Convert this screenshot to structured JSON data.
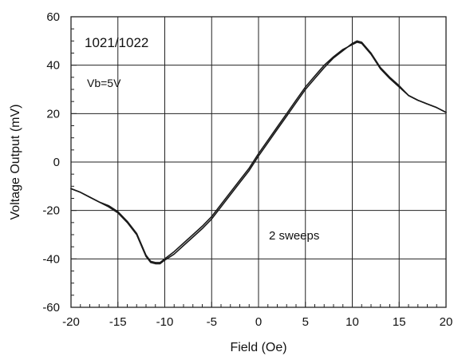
{
  "chart_data": {
    "type": "line",
    "title": "",
    "xlabel": "Field (Oe)",
    "ylabel": "Voltage Output (mV)",
    "xlim": [
      -20,
      20
    ],
    "ylim": [
      -60,
      60
    ],
    "xticks": [
      -20,
      -15,
      -10,
      -5,
      0,
      5,
      10,
      15,
      20
    ],
    "yticks": [
      -60,
      -40,
      -20,
      0,
      20,
      40,
      60
    ],
    "xtick_labels": [
      "-20",
      "-15",
      "-10",
      "-5",
      "0",
      "5",
      "10",
      "15",
      "20"
    ],
    "ytick_labels": [
      "-60",
      "-40",
      "-20",
      "0",
      "20",
      "40",
      "60"
    ],
    "grid": true,
    "annotations": [
      {
        "text": "1021/1022",
        "size": "large"
      },
      {
        "text": "Vb=5V",
        "size": "small"
      },
      {
        "text": "2 sweeps",
        "size": "small"
      }
    ],
    "series": [
      {
        "x": [
          -20,
          -19,
          -18,
          -17,
          -16,
          -15,
          -14,
          -13,
          -12,
          -11.5,
          -11,
          -10.5,
          -10,
          -9,
          -8,
          -7,
          -6,
          -5,
          -4,
          -3,
          -2,
          -1,
          0,
          1,
          2,
          3,
          4,
          5,
          6,
          7,
          8,
          9,
          10,
          10.5,
          11,
          12,
          13,
          14,
          15,
          16,
          17,
          18,
          19,
          20
        ],
        "y": [
          -11,
          -12.5,
          -14.5,
          -16.5,
          -18.5,
          -21,
          -25,
          -30,
          -39,
          -41.5,
          -42,
          -42,
          -40.5,
          -38,
          -34.5,
          -31,
          -27.5,
          -23.5,
          -18.5,
          -13.5,
          -8.5,
          -3.5,
          2.5,
          8,
          13.5,
          19,
          24.5,
          30,
          34.5,
          39,
          43,
          46,
          49,
          50,
          49.5,
          45,
          39,
          35,
          31.5,
          27.5,
          25.5,
          24,
          22.5,
          20.5
        ]
      },
      {
        "x": [
          -20,
          -19,
          -18,
          -17,
          -16,
          -15,
          -14,
          -13,
          -12,
          -11.5,
          -11,
          -10.5,
          -10,
          -9,
          -8,
          -7,
          -6,
          -5,
          -4,
          -3,
          -2,
          -1,
          0,
          1,
          2,
          3,
          4,
          5,
          6,
          7,
          8,
          9,
          10,
          10.5,
          11,
          12,
          13,
          14,
          15,
          16,
          17,
          18,
          19,
          20
        ],
        "y": [
          -11,
          -12.5,
          -14.5,
          -16.5,
          -18,
          -20.5,
          -24.5,
          -29.5,
          -38.5,
          -41,
          -41.5,
          -41.5,
          -40,
          -37,
          -33.5,
          -30,
          -26.5,
          -22.5,
          -17.5,
          -12.5,
          -7.5,
          -2.5,
          3.5,
          9,
          14.5,
          20,
          25.5,
          31,
          35.5,
          40,
          43.5,
          46.5,
          48.5,
          49.5,
          49,
          44.5,
          38.5,
          34.5,
          31,
          27.5,
          25.5,
          24,
          22.5,
          20.5
        ]
      }
    ]
  },
  "colors": {
    "line": "#1a1a1a",
    "grid": "#222222",
    "background": "#ffffff"
  }
}
